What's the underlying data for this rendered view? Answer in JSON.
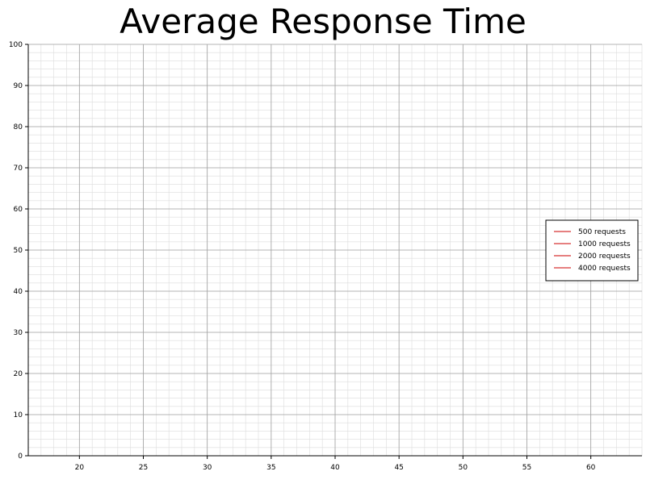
{
  "chart_data": {
    "type": "line",
    "title": "Average Response Time",
    "xlabel": "",
    "ylabel": "",
    "xlim": [
      16,
      64
    ],
    "ylim": [
      0,
      100
    ],
    "x_ticks": [
      20,
      25,
      30,
      35,
      40,
      45,
      50,
      55,
      60
    ],
    "y_ticks": [
      0,
      10,
      20,
      30,
      40,
      50,
      60,
      70,
      80,
      90,
      100
    ],
    "grid": true,
    "minor_grid": true,
    "legend_position": "right",
    "series": [
      {
        "name": "500 requests",
        "color": "#cc0000",
        "x": [],
        "y": []
      },
      {
        "name": "1000 requests",
        "color": "#cc0000",
        "x": [],
        "y": []
      },
      {
        "name": "2000 requests",
        "color": "#cc0000",
        "x": [],
        "y": []
      },
      {
        "name": "4000 requests",
        "color": "#cc0000",
        "x": [],
        "y": []
      }
    ]
  }
}
